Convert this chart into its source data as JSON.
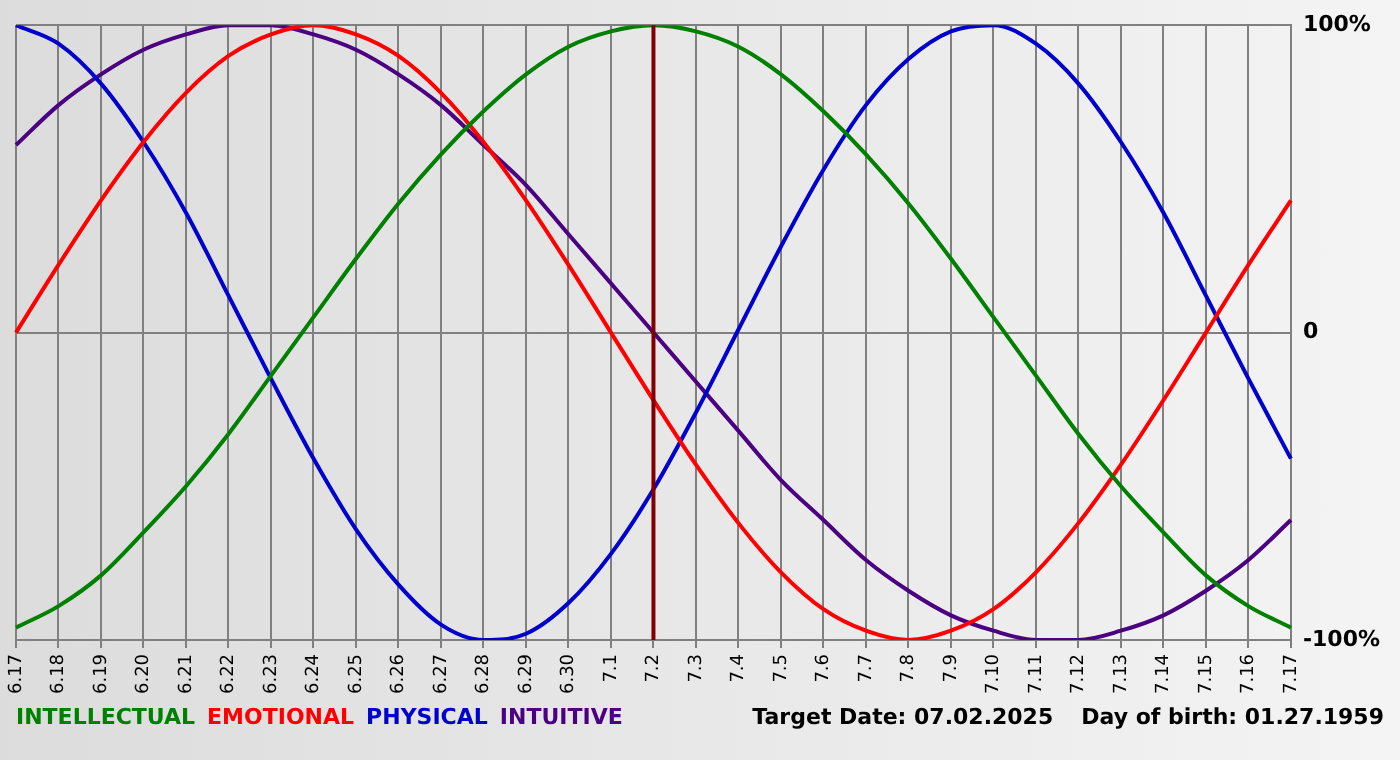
{
  "chart_data": {
    "type": "line",
    "categories": [
      "6.17",
      "6.18",
      "6.19",
      "6.20",
      "6.21",
      "6.22",
      "6.23",
      "6.24",
      "6.25",
      "6.26",
      "6.27",
      "6.28",
      "6.29",
      "6.30",
      "7.1",
      "7.2",
      "7.3",
      "7.4",
      "7.5",
      "7.6",
      "7.7",
      "7.8",
      "7.9",
      "7.10",
      "7.11",
      "7.12",
      "7.13",
      "7.14",
      "7.15",
      "7.16",
      "7.17"
    ],
    "series": [
      {
        "name": "INTELLECTUAL",
        "color": "#008000",
        "values": [
          -96,
          -89,
          -79,
          -65,
          -50,
          -33,
          -14,
          5,
          24,
          42,
          58,
          72,
          84,
          93,
          98,
          100,
          98,
          93,
          84,
          72,
          58,
          42,
          24,
          5,
          -14,
          -33,
          -50,
          -65,
          -79,
          -89,
          -96
        ]
      },
      {
        "name": "EMOTIONAL",
        "color": "#ff0000",
        "values": [
          0,
          22,
          43,
          62,
          78,
          90,
          97,
          100,
          97,
          90,
          78,
          62,
          43,
          22,
          0,
          -22,
          -43,
          -62,
          -78,
          -90,
          -97,
          -100,
          -97,
          -90,
          -78,
          -62,
          -43,
          -22,
          0,
          22,
          43
        ]
      },
      {
        "name": "PHYSICAL",
        "color": "#0000cc",
        "values": [
          100,
          94,
          81,
          62,
          39,
          12,
          -15,
          -41,
          -64,
          -82,
          -95,
          -100,
          -98,
          -88,
          -72,
          -51,
          -26,
          1,
          28,
          53,
          74,
          89,
          98,
          100,
          94,
          81,
          62,
          39,
          12,
          -15,
          -41
        ]
      },
      {
        "name": "INTUITIVE",
        "color": "#4b0082",
        "values": [
          61,
          74,
          84,
          92,
          97,
          100,
          100,
          97,
          92,
          84,
          74,
          61,
          48,
          32,
          16,
          0,
          -16,
          -32,
          -48,
          -61,
          -74,
          -84,
          -92,
          -97,
          -100,
          -100,
          -97,
          -92,
          -84,
          -74,
          -61
        ]
      }
    ],
    "ylim": [
      -100,
      100
    ],
    "yticks": [
      {
        "value": -100,
        "label": "-100%"
      },
      {
        "value": 0,
        "label": "0"
      },
      {
        "value": 100,
        "label": "100%"
      }
    ],
    "grid": true,
    "legend": "bottom",
    "ref_lines": [
      {
        "axis": "x",
        "value": "7.2",
        "color": "#800000"
      }
    ],
    "annotations": [
      "Target Date: 07.02.2025",
      "Day of birth: 01.27.1959"
    ]
  }
}
